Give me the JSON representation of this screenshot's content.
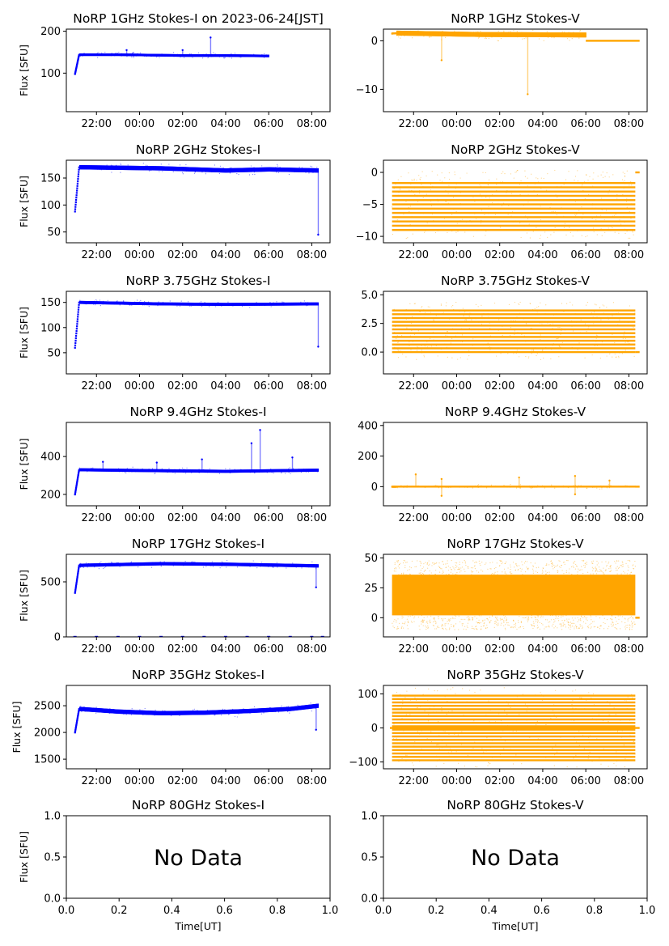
{
  "figure": {
    "colors": {
      "stokes_i": "#0000ff",
      "stokes_v": "#ffa500",
      "axes": "#000000",
      "background": "#ffffff"
    }
  },
  "chart_data": [
    {
      "type": "scatter",
      "title": "NoRP 1GHz Stokes-I on 2023-06-24[JST]",
      "xlabel": "",
      "ylabel": "Flux [SFU]",
      "xticks": [
        "22:00",
        "00:00",
        "02:00",
        "04:00",
        "06:00",
        "08:00"
      ],
      "xlim": [
        20.6,
        32.85
      ],
      "ylim": [
        8,
        205
      ],
      "yticks": [
        100,
        200
      ],
      "ytick_labels": [
        "100",
        "200"
      ],
      "series": [
        {
          "color": "#0000ff",
          "start": 21.0,
          "end": 30.0,
          "start_value": 98,
          "level": [
            [
              21.2,
              144
            ],
            [
              23,
              144
            ],
            [
              26,
              142
            ],
            [
              28,
              142
            ],
            [
              30,
              141
            ]
          ],
          "noise": 3,
          "spikes": [
            [
              23.4,
              155
            ],
            [
              26.0,
              155
            ],
            [
              27.3,
              185
            ]
          ]
        }
      ]
    },
    {
      "type": "scatter",
      "title": "NoRP 1GHz Stokes-V",
      "xlabel": "",
      "ylabel": "",
      "xticks": [
        "22:00",
        "00:00",
        "02:00",
        "04:00",
        "06:00",
        "08:00"
      ],
      "xlim": [
        20.6,
        32.85
      ],
      "ylim": [
        -14.6,
        2.4
      ],
      "yticks": [
        -10,
        0
      ],
      "ytick_labels": [
        "−10",
        "0"
      ],
      "series": [
        {
          "color": "#ffa500",
          "start": 21.0,
          "end": 30.0,
          "start_value": 1.5,
          "level": [
            [
              21.0,
              1.6
            ],
            [
              25,
              1.3
            ],
            [
              30,
              1.2
            ]
          ],
          "noise": 0.5,
          "spikes": [
            [
              27.3,
              -11
            ],
            [
              23.3,
              -4
            ]
          ],
          "tail": {
            "start": 30.0,
            "end": 32.5,
            "value": 0
          }
        }
      ]
    },
    {
      "type": "scatter",
      "title": "NoRP 2GHz Stokes-I",
      "xlabel": "",
      "ylabel": "Flux [SFU]",
      "xticks": [
        "22:00",
        "00:00",
        "02:00",
        "04:00",
        "06:00",
        "08:00"
      ],
      "xlim": [
        20.6,
        32.85
      ],
      "ylim": [
        30,
        183
      ],
      "yticks": [
        50,
        100,
        150
      ],
      "ytick_labels": [
        "50",
        "100",
        "150"
      ],
      "series": [
        {
          "color": "#0000ff",
          "start": 21.0,
          "end": 32.3,
          "start_value": 88,
          "level": [
            [
              21.2,
              170
            ],
            [
              25,
              168
            ],
            [
              28,
              164
            ],
            [
              30,
              166
            ],
            [
              32.3,
              164
            ]
          ],
          "noise": 4,
          "spikes": [
            [
              32.3,
              45
            ]
          ]
        }
      ]
    },
    {
      "type": "scatter",
      "title": "NoRP 2GHz Stokes-V",
      "xlabel": "",
      "ylabel": "",
      "xticks": [
        "22:00",
        "00:00",
        "02:00",
        "04:00",
        "06:00",
        "08:00"
      ],
      "xlim": [
        20.6,
        32.85
      ],
      "ylim": [
        -11,
        1.9
      ],
      "yticks": [
        -10,
        -5,
        0
      ],
      "ytick_labels": [
        "−10",
        "−5",
        "0"
      ],
      "series": [
        {
          "color": "#ffa500",
          "start": 21.0,
          "end": 32.3,
          "bands": {
            "from": -9,
            "to": -1,
            "step": 0.667
          },
          "tail": {
            "start": 32.3,
            "end": 32.5,
            "value": 0
          }
        }
      ]
    },
    {
      "type": "scatter",
      "title": "NoRP 3.75GHz Stokes-I",
      "xlabel": "",
      "ylabel": "Flux [SFU]",
      "xticks": [
        "22:00",
        "00:00",
        "02:00",
        "04:00",
        "06:00",
        "08:00"
      ],
      "xlim": [
        20.6,
        32.85
      ],
      "ylim": [
        8,
        172
      ],
      "yticks": [
        50,
        100,
        150
      ],
      "ytick_labels": [
        "50",
        "100",
        "150"
      ],
      "series": [
        {
          "color": "#0000ff",
          "start": 21.0,
          "end": 32.3,
          "start_value": 60,
          "level": [
            [
              21.2,
              150
            ],
            [
              25,
              147
            ],
            [
              28,
              146
            ],
            [
              32.3,
              147
            ]
          ],
          "noise": 3,
          "spikes": [
            [
              32.3,
              62
            ]
          ]
        }
      ]
    },
    {
      "type": "scatter",
      "title": "NoRP 3.75GHz Stokes-V",
      "xlabel": "",
      "ylabel": "",
      "xticks": [
        "22:00",
        "00:00",
        "02:00",
        "04:00",
        "06:00",
        "08:00"
      ],
      "xlim": [
        20.6,
        32.85
      ],
      "ylim": [
        -1.9,
        5.3
      ],
      "yticks": [
        0,
        2.5,
        5
      ],
      "ytick_labels": [
        "0.0",
        "2.5",
        "5.0"
      ],
      "series": [
        {
          "color": "#ffa500",
          "start": 21.0,
          "end": 32.3,
          "bands": {
            "from": 0,
            "to": 3.7,
            "step": 0.33
          },
          "tail": {
            "start": 32.3,
            "end": 32.5,
            "value": 0
          }
        }
      ]
    },
    {
      "type": "scatter",
      "title": "NoRP 9.4GHz Stokes-I",
      "xlabel": "",
      "ylabel": "Flux [SFU]",
      "xticks": [
        "22:00",
        "00:00",
        "02:00",
        "04:00",
        "06:00",
        "08:00"
      ],
      "xlim": [
        20.6,
        32.85
      ],
      "ylim": [
        140,
        580
      ],
      "yticks": [
        200,
        400
      ],
      "ytick_labels": [
        "200",
        "400"
      ],
      "series": [
        {
          "color": "#0000ff",
          "start": 21.0,
          "end": 32.3,
          "start_value": 200,
          "level": [
            [
              21.2,
              330
            ],
            [
              25,
              325
            ],
            [
              28,
              322
            ],
            [
              32.3,
              328
            ]
          ],
          "noise": 8,
          "spikes": [
            [
              22.3,
              372
            ],
            [
              24.8,
              368
            ],
            [
              26.9,
              385
            ],
            [
              29.2,
              470
            ],
            [
              29.6,
              540
            ],
            [
              31.1,
              395
            ]
          ]
        }
      ]
    },
    {
      "type": "scatter",
      "title": "NoRP 9.4GHz Stokes-V",
      "xlabel": "",
      "ylabel": "",
      "xticks": [
        "22:00",
        "00:00",
        "02:00",
        "04:00",
        "06:00",
        "08:00"
      ],
      "xlim": [
        20.6,
        32.85
      ],
      "ylim": [
        -125,
        420
      ],
      "yticks": [
        0,
        200,
        400
      ],
      "ytick_labels": [
        "0",
        "200",
        "400"
      ],
      "series": [
        {
          "color": "#ffa500",
          "start": 21.0,
          "end": 32.3,
          "start_value": 0,
          "level": [
            [
              21,
              0
            ],
            [
              32.3,
              0
            ]
          ],
          "noise": 6,
          "spikes": [
            [
              22.1,
              80
            ],
            [
              23.3,
              -60
            ],
            [
              23.3,
              50
            ],
            [
              26.9,
              60
            ],
            [
              29.5,
              -50
            ],
            [
              29.5,
              70
            ],
            [
              31.1,
              40
            ]
          ],
          "tail": {
            "start": 32.3,
            "end": 32.5,
            "value": 0
          }
        }
      ]
    },
    {
      "type": "scatter",
      "title": "NoRP 17GHz Stokes-I",
      "xlabel": "",
      "ylabel": "Flux [SFU]",
      "xticks": [
        "22:00",
        "00:00",
        "02:00",
        "04:00",
        "06:00",
        "08:00"
      ],
      "xlim": [
        20.6,
        32.85
      ],
      "ylim": [
        0,
        750
      ],
      "yticks": [
        0,
        500
      ],
      "ytick_labels": [
        "0",
        "500"
      ],
      "series": [
        {
          "color": "#0000ff",
          "start": 21.0,
          "end": 32.3,
          "start_value": 400,
          "level": [
            [
              21.2,
              650
            ],
            [
              25,
              665
            ],
            [
              28,
              660
            ],
            [
              32.3,
              645
            ]
          ],
          "noise": 15,
          "spikes": [
            [
              32.2,
              450
            ]
          ],
          "zero_marks": [
            21,
            22,
            23,
            24,
            25,
            26,
            27,
            28,
            29,
            30,
            31,
            32,
            32.5
          ]
        }
      ]
    },
    {
      "type": "scatter",
      "title": "NoRP 17GHz Stokes-V",
      "xlabel": "",
      "ylabel": "",
      "xticks": [
        "22:00",
        "00:00",
        "02:00",
        "04:00",
        "06:00",
        "08:00"
      ],
      "xlim": [
        20.6,
        32.85
      ],
      "ylim": [
        -16,
        53
      ],
      "yticks": [
        0,
        25,
        50
      ],
      "ytick_labels": [
        "0",
        "25",
        "50"
      ],
      "series": [
        {
          "color": "#ffa500",
          "start": 21.0,
          "end": 32.3,
          "fill": {
            "from": 2,
            "to": 36
          },
          "noise": 12,
          "tail": {
            "start": 32.3,
            "end": 32.5,
            "value": 0
          }
        }
      ]
    },
    {
      "type": "scatter",
      "title": "NoRP 35GHz Stokes-I",
      "xlabel": "",
      "ylabel": "Flux [SFU]",
      "xticks": [
        "22:00",
        "00:00",
        "02:00",
        "04:00",
        "06:00",
        "08:00"
      ],
      "xlim": [
        20.6,
        32.85
      ],
      "ylim": [
        1320,
        2880
      ],
      "yticks": [
        1500,
        2000,
        2500
      ],
      "ytick_labels": [
        "1500",
        "2000",
        "2500"
      ],
      "series": [
        {
          "color": "#0000ff",
          "start": 21.0,
          "end": 32.3,
          "start_value": 2000,
          "level": [
            [
              21.2,
              2440
            ],
            [
              23,
              2390
            ],
            [
              25,
              2360
            ],
            [
              27,
              2370
            ],
            [
              29,
              2400
            ],
            [
              31,
              2440
            ],
            [
              32.3,
              2500
            ]
          ],
          "noise": 40,
          "spikes": [
            [
              32.2,
              2050
            ]
          ]
        }
      ]
    },
    {
      "type": "scatter",
      "title": "NoRP 35GHz Stokes-V",
      "xlabel": "",
      "ylabel": "",
      "xticks": [
        "22:00",
        "00:00",
        "02:00",
        "04:00",
        "06:00",
        "08:00"
      ],
      "xlim": [
        20.6,
        32.85
      ],
      "ylim": [
        -120,
        125
      ],
      "yticks": [
        -100,
        0,
        100
      ],
      "ytick_labels": [
        "−100",
        "0",
        "100"
      ],
      "series": [
        {
          "color": "#ffa500",
          "start": 21.0,
          "end": 32.3,
          "bands": {
            "from": -95,
            "to": 100,
            "step": 10
          },
          "tail": {
            "start": 20.9,
            "end": 32.5,
            "value": 0
          }
        }
      ]
    },
    {
      "type": "scatter",
      "title": "NoRP 80GHz Stokes-I",
      "xlabel": "Time[UT]",
      "ylabel": "Flux [SFU]",
      "xticks": [
        "0.0",
        "0.2",
        "0.4",
        "0.6",
        "0.8",
        "1.0"
      ],
      "xlim": [
        0,
        1
      ],
      "ylim": [
        0,
        1
      ],
      "yticks": [
        0,
        0.5,
        1
      ],
      "ytick_labels": [
        "0.0",
        "0.5",
        "1.0"
      ],
      "annotation": "No Data",
      "series": []
    },
    {
      "type": "scatter",
      "title": "NoRP 80GHz Stokes-V",
      "xlabel": "Time[UT]",
      "ylabel": "",
      "xticks": [
        "0.0",
        "0.2",
        "0.4",
        "0.6",
        "0.8",
        "1.0"
      ],
      "xlim": [
        0,
        1
      ],
      "ylim": [
        0,
        1
      ],
      "yticks": [
        0,
        0.5,
        1
      ],
      "ytick_labels": [
        "0.0",
        "0.5",
        "1.0"
      ],
      "annotation": "No Data",
      "series": []
    }
  ]
}
